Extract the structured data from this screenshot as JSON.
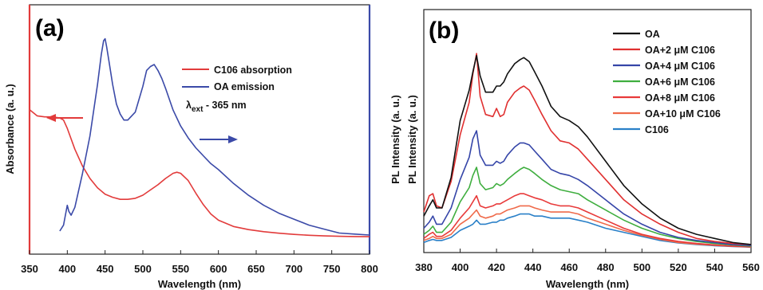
{
  "chart_data": [
    {
      "panel_label": "(a)",
      "type": "line",
      "xlabel": "Wavelength (nm)",
      "ylabel": "Absorbance (a. u.)",
      "xlim": [
        350,
        800
      ],
      "ylim": [
        0,
        1
      ],
      "x_ticks": [
        "350",
        "400",
        "450",
        "500",
        "550",
        "600",
        "650",
        "700",
        "750",
        "800"
      ],
      "y_ticks": [],
      "annotation_main": "λ",
      "annotation_sub": "ext",
      "annotation_rest": " - 365 nm",
      "series": [
        {
          "name": "C106 absorption",
          "color": "#e23b3b",
          "axis": "left",
          "x": [
            350,
            360,
            370,
            380,
            390,
            395,
            400,
            410,
            420,
            430,
            440,
            450,
            460,
            470,
            480,
            490,
            500,
            510,
            520,
            530,
            540,
            545,
            550,
            560,
            570,
            580,
            590,
            600,
            620,
            640,
            660,
            680,
            700,
            720,
            740,
            760,
            780,
            800
          ],
          "y": [
            0.62,
            0.59,
            0.585,
            0.585,
            0.58,
            0.57,
            0.53,
            0.43,
            0.35,
            0.29,
            0.245,
            0.215,
            0.2,
            0.19,
            0.19,
            0.195,
            0.21,
            0.235,
            0.26,
            0.29,
            0.315,
            0.32,
            0.315,
            0.28,
            0.22,
            0.165,
            0.12,
            0.09,
            0.06,
            0.045,
            0.035,
            0.028,
            0.022,
            0.018,
            0.015,
            0.013,
            0.012,
            0.011
          ]
        },
        {
          "name": "OA emission",
          "color": "#3b4aa8",
          "axis": "right",
          "x": [
            390,
            395,
            398,
            400,
            402,
            405,
            410,
            420,
            430,
            440,
            445,
            448,
            450,
            452,
            455,
            460,
            465,
            470,
            475,
            480,
            490,
            500,
            505,
            510,
            515,
            520,
            525,
            530,
            540,
            550,
            560,
            570,
            580,
            590,
            600,
            620,
            640,
            660,
            680,
            700,
            720,
            740,
            760,
            780,
            800
          ],
          "y": [
            0.04,
            0.07,
            0.13,
            0.17,
            0.14,
            0.12,
            0.16,
            0.33,
            0.52,
            0.78,
            0.93,
            1.0,
            1.01,
            0.97,
            0.9,
            0.78,
            0.68,
            0.63,
            0.6,
            0.6,
            0.64,
            0.77,
            0.85,
            0.87,
            0.88,
            0.85,
            0.81,
            0.76,
            0.65,
            0.57,
            0.51,
            0.46,
            0.42,
            0.38,
            0.35,
            0.28,
            0.22,
            0.17,
            0.13,
            0.1,
            0.07,
            0.05,
            0.03,
            0.025,
            0.02
          ]
        }
      ]
    },
    {
      "panel_label": "(b)",
      "type": "line",
      "xlabel": "Wavelength (nm)",
      "ylabel": "PL Intensity (a. u.)",
      "xlim": [
        380,
        560
      ],
      "ylim": [
        0,
        1
      ],
      "x_ticks": [
        "380",
        "400",
        "420",
        "440",
        "460",
        "480",
        "500",
        "520",
        "540",
        "560"
      ],
      "y_ticks": [],
      "x": [
        380,
        383,
        385,
        387,
        390,
        395,
        400,
        405,
        407,
        409,
        411,
        414,
        418,
        420,
        422,
        424,
        426,
        430,
        433,
        435,
        438,
        441,
        445,
        450,
        455,
        460,
        465,
        470,
        480,
        490,
        500,
        510,
        520,
        530,
        540,
        550,
        560
      ],
      "series": [
        {
          "name": "OA",
          "color": "#111111",
          "y": [
            0.16,
            0.21,
            0.24,
            0.2,
            0.2,
            0.35,
            0.63,
            0.78,
            0.87,
            0.95,
            0.85,
            0.77,
            0.77,
            0.8,
            0.8,
            0.82,
            0.86,
            0.91,
            0.93,
            0.94,
            0.92,
            0.87,
            0.8,
            0.7,
            0.65,
            0.63,
            0.6,
            0.55,
            0.43,
            0.31,
            0.22,
            0.15,
            0.1,
            0.07,
            0.05,
            0.03,
            0.02
          ]
        },
        {
          "name": "OA+2 μM C106",
          "color": "#e03030",
          "y": [
            0.18,
            0.26,
            0.27,
            0.21,
            0.2,
            0.33,
            0.56,
            0.72,
            0.86,
            0.96,
            0.75,
            0.66,
            0.65,
            0.69,
            0.65,
            0.66,
            0.72,
            0.77,
            0.79,
            0.8,
            0.78,
            0.73,
            0.66,
            0.58,
            0.53,
            0.52,
            0.49,
            0.44,
            0.34,
            0.24,
            0.17,
            0.12,
            0.08,
            0.05,
            0.035,
            0.025,
            0.02
          ]
        },
        {
          "name": "OA+4 μM C106",
          "color": "#3545a8",
          "y": [
            0.1,
            0.13,
            0.16,
            0.12,
            0.12,
            0.2,
            0.34,
            0.45,
            0.54,
            0.58,
            0.46,
            0.41,
            0.41,
            0.43,
            0.42,
            0.43,
            0.46,
            0.5,
            0.52,
            0.52,
            0.51,
            0.48,
            0.44,
            0.39,
            0.37,
            0.36,
            0.34,
            0.31,
            0.24,
            0.17,
            0.12,
            0.08,
            0.055,
            0.04,
            0.03,
            0.02,
            0.015
          ]
        },
        {
          "name": "OA+6 μM C106",
          "color": "#3fae3f",
          "y": [
            0.07,
            0.09,
            0.11,
            0.08,
            0.08,
            0.13,
            0.23,
            0.3,
            0.36,
            0.4,
            0.32,
            0.29,
            0.3,
            0.32,
            0.31,
            0.32,
            0.34,
            0.37,
            0.39,
            0.4,
            0.39,
            0.37,
            0.34,
            0.31,
            0.29,
            0.28,
            0.27,
            0.24,
            0.19,
            0.14,
            0.1,
            0.07,
            0.05,
            0.035,
            0.025,
            0.018,
            0.012
          ]
        },
        {
          "name": "OA+8 μM C106",
          "color": "#e83a3a",
          "y": [
            0.05,
            0.07,
            0.08,
            0.06,
            0.06,
            0.09,
            0.15,
            0.2,
            0.23,
            0.26,
            0.21,
            0.2,
            0.21,
            0.22,
            0.22,
            0.23,
            0.24,
            0.26,
            0.27,
            0.27,
            0.26,
            0.25,
            0.24,
            0.22,
            0.21,
            0.21,
            0.2,
            0.18,
            0.14,
            0.1,
            0.07,
            0.05,
            0.035,
            0.025,
            0.018,
            0.012,
            0.008
          ]
        },
        {
          "name": "OA+10 μM C106",
          "color": "#ef6a4a",
          "y": [
            0.04,
            0.05,
            0.06,
            0.05,
            0.05,
            0.07,
            0.12,
            0.15,
            0.17,
            0.19,
            0.16,
            0.15,
            0.16,
            0.17,
            0.17,
            0.18,
            0.19,
            0.2,
            0.21,
            0.21,
            0.21,
            0.2,
            0.19,
            0.18,
            0.18,
            0.18,
            0.17,
            0.15,
            0.12,
            0.09,
            0.065,
            0.045,
            0.03,
            0.022,
            0.016,
            0.011,
            0.008
          ]
        },
        {
          "name": "C106",
          "color": "#2a80c8",
          "y": [
            0.03,
            0.04,
            0.045,
            0.04,
            0.04,
            0.055,
            0.09,
            0.11,
            0.12,
            0.14,
            0.12,
            0.12,
            0.13,
            0.13,
            0.14,
            0.14,
            0.15,
            0.16,
            0.17,
            0.17,
            0.17,
            0.16,
            0.16,
            0.15,
            0.15,
            0.15,
            0.14,
            0.13,
            0.1,
            0.08,
            0.06,
            0.04,
            0.028,
            0.02,
            0.014,
            0.01,
            0.007
          ]
        }
      ]
    }
  ]
}
